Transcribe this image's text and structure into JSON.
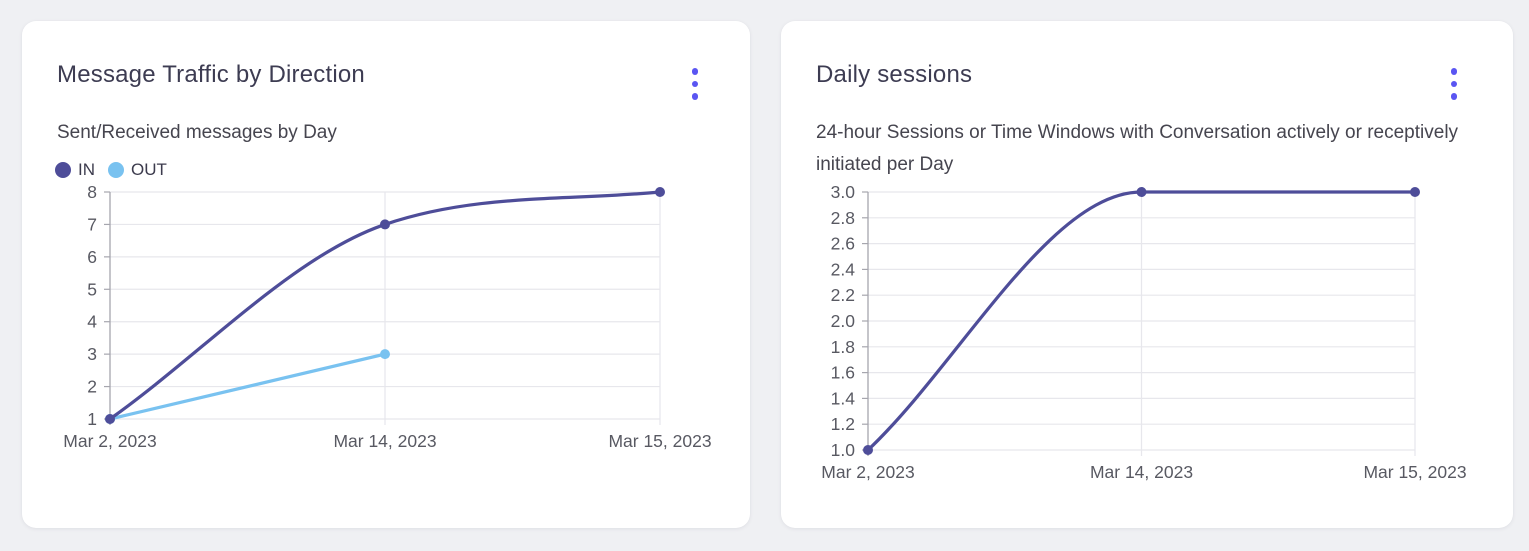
{
  "page_background": "#eff0f3",
  "colors": {
    "accent_menu": "#5a55f2",
    "line_primary": "#4e4d99",
    "line_secondary": "#79c2f0",
    "grid": "#e7e7ec",
    "axis": "#a6a6ae",
    "tick_text": "#585962",
    "card_background": "#ffffff"
  },
  "cards": [
    {
      "title": "Message Traffic by Direction",
      "subtitle": "Sent/Received messages by Day",
      "menu_icon": "kebab-menu",
      "legend": [
        {
          "label": "IN",
          "color": "#4e4d99"
        },
        {
          "label": "OUT",
          "color": "#79c2f0"
        }
      ]
    },
    {
      "title": "Daily sessions",
      "subtitle": "24-hour Sessions or Time Windows with Conversation actively or receptively initiated per Day",
      "menu_icon": "kebab-menu"
    }
  ],
  "chart_data": [
    {
      "type": "line",
      "title": "Message Traffic by Direction",
      "subtitle": "Sent/Received messages by Day",
      "categories": [
        "Mar 2, 2023",
        "Mar 14, 2023",
        "Mar 15, 2023"
      ],
      "series": [
        {
          "name": "IN",
          "color": "#4e4d99",
          "values": [
            1,
            7,
            8
          ]
        },
        {
          "name": "OUT",
          "color": "#79c2f0",
          "values": [
            1,
            3,
            null
          ]
        }
      ],
      "xlabel": "",
      "ylabel": "",
      "ylim": [
        1,
        8
      ],
      "y_ticks": [
        "1",
        "2",
        "3",
        "4",
        "5",
        "6",
        "7",
        "8"
      ],
      "grid": true,
      "smooth": true,
      "legend_position": "top-left"
    },
    {
      "type": "line",
      "title": "Daily sessions",
      "subtitle": "24-hour Sessions or Time Windows with Conversation actively or receptively initiated per Day",
      "categories": [
        "Mar 2, 2023",
        "Mar 14, 2023",
        "Mar 15, 2023"
      ],
      "series": [
        {
          "name": "Daily sessions",
          "color": "#4e4d99",
          "values": [
            1.0,
            3.0,
            3.0
          ]
        }
      ],
      "xlabel": "",
      "ylabel": "",
      "ylim": [
        1.0,
        3.0
      ],
      "y_ticks": [
        "1.0",
        "1.2",
        "1.4",
        "1.6",
        "1.8",
        "2.0",
        "2.2",
        "2.4",
        "2.6",
        "2.8",
        "3.0"
      ],
      "grid": true,
      "smooth": true,
      "legend_position": "none"
    }
  ]
}
